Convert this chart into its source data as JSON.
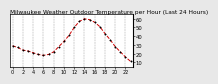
{
  "title": "Milwaukee Weather Outdoor Temperature per Hour (Last 24 Hours)",
  "hours": [
    0,
    1,
    2,
    3,
    4,
    5,
    6,
    7,
    8,
    9,
    10,
    11,
    12,
    13,
    14,
    15,
    16,
    17,
    18,
    19,
    20,
    21,
    22,
    23
  ],
  "temps": [
    29,
    27,
    24,
    23,
    21,
    19,
    18,
    19,
    22,
    28,
    34,
    41,
    50,
    57,
    60,
    59,
    56,
    51,
    43,
    36,
    28,
    22,
    16,
    11
  ],
  "line_color": "#cc0000",
  "marker_color": "#000000",
  "bg_color": "#e8e8e8",
  "plot_bg_color": "#ffffff",
  "grid_color": "#888888",
  "ylim": [
    5,
    65
  ],
  "yticks": [
    10,
    20,
    30,
    40,
    50,
    60
  ],
  "ylabel_fontsize": 3.8,
  "xlabel_fontsize": 3.5,
  "title_fontsize": 4.2,
  "xtick_positions": [
    0,
    2,
    4,
    6,
    8,
    10,
    12,
    14,
    16,
    18,
    20,
    22
  ],
  "xtick_labels": [
    "0",
    "2",
    "4",
    "6",
    "8",
    "10",
    "12",
    "14",
    "16",
    "18",
    "20",
    "22"
  ]
}
